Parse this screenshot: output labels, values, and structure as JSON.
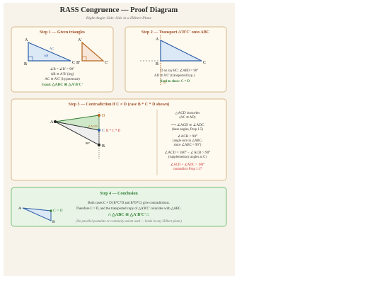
{
  "header": {
    "title": "RASS Congruence — Proof Diagram",
    "subtitle": "Right-Angle–Side–Side in a Hilbert Plane"
  },
  "step1": {
    "title": "Step 1 — Given triangles",
    "labels": [
      "A",
      "B",
      "C",
      "AB",
      "AC",
      "A'",
      "B'",
      "C'"
    ],
    "lines": [
      "∠B = ∠B' = 90°",
      "AB ≅ A'B' (leg)",
      "AC ≅ A'C' (hypotenuse)"
    ],
    "goal": "Goal: △ABC ≅ △A'B'C'"
  },
  "step2": {
    "title": "Step 2 — Transport A'B'C' onto ABC",
    "labels": [
      "A",
      "B",
      "C",
      "D"
    ],
    "lines": [
      "D on ray BC: ∠ABD = 90°",
      "AD ≅ A'C' (transported hyp.)"
    ],
    "goal": "Need to show: C = D"
  },
  "step3": {
    "title": "Step 3 — Contradiction if C ≠ D (case B * C * D shown)",
    "labels": [
      "A",
      "D",
      "C",
      "B",
      "∠ACD",
      "B * C * D",
      "90°"
    ],
    "lines": [
      "△ACD isosceles",
      "(AC ≅ AD)",
      "⟹ ∠ACD ≅ ∠ADC",
      "(base angles, Prop 1.5)",
      "∠ACB < 90°",
      "(angle sum in △ABC,",
      "since ∠ABC = 90°)",
      "∠ACD = 180° − ∠ACB > 90°",
      "(supplementary angles at C)"
    ],
    "contradiction": [
      "∠ACD + ∠ADC > 180°",
      "contradicts Prop 1.17"
    ]
  },
  "step4": {
    "title": "Step 4 — Conclusion",
    "labels": [
      "A",
      "C = D",
      "B"
    ],
    "lines": [
      "Both cases C ≠ D (B*C*D and B*D*C) give contradictions.",
      "Therefore C = D, and the transported copy of △A'B'C' coincides with △ABC."
    ],
    "result": "∴ △ABC ≅ △A'B'C' □",
    "note": "(No parallel postulate or continuity axiom used — holds in any Hilbert plane)"
  }
}
